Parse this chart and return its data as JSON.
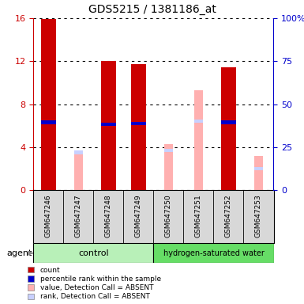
{
  "title": "GDS5215 / 1381186_at",
  "samples": [
    "GSM647246",
    "GSM647247",
    "GSM647248",
    "GSM647249",
    "GSM647250",
    "GSM647251",
    "GSM647252",
    "GSM647253"
  ],
  "red_values": [
    15.9,
    0,
    12.0,
    11.7,
    0,
    0,
    11.4,
    0
  ],
  "blue_values": [
    6.3,
    0,
    6.1,
    6.2,
    0,
    0,
    6.3,
    0
  ],
  "pink_values": [
    0,
    3.7,
    0,
    0,
    4.3,
    9.3,
    0,
    3.2
  ],
  "lb_values": [
    0,
    3.5,
    0,
    0,
    3.7,
    6.4,
    0,
    2.0
  ],
  "ylim_left": [
    0,
    16
  ],
  "ylim_right": [
    0,
    100
  ],
  "yticks_left": [
    0,
    4,
    8,
    12,
    16
  ],
  "yticks_right": [
    0,
    25,
    50,
    75,
    100
  ],
  "ytick_labels_right": [
    "0",
    "25",
    "50",
    "75",
    "100%"
  ],
  "left_axis_color": "#cc0000",
  "right_axis_color": "#0000cc",
  "ctrl_samples": [
    0,
    1,
    2,
    3
  ],
  "hw_samples": [
    4,
    5,
    6,
    7
  ],
  "ctrl_color": "#b8f0b8",
  "hw_color": "#66dd66",
  "sample_bg": "#d8d8d8",
  "bar_width": 0.5,
  "pink_bar_width": 0.28,
  "blue_bar_height": 0.32,
  "legend_items": [
    {
      "color": "#cc0000",
      "label": "count"
    },
    {
      "color": "#0000cc",
      "label": "percentile rank within the sample"
    },
    {
      "color": "#ffb0b0",
      "label": "value, Detection Call = ABSENT"
    },
    {
      "color": "#c8d0ff",
      "label": "rank, Detection Call = ABSENT"
    }
  ]
}
